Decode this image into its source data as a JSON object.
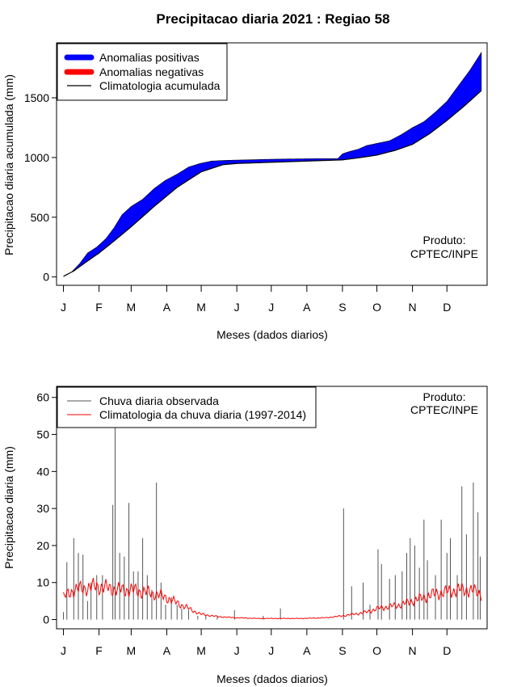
{
  "title": "Precipitacao diaria 2021 : Regiao 58",
  "producer": {
    "line1": "Produto:",
    "line2": "CPTEC/INPE"
  },
  "colors": {
    "positive": "#0000ff",
    "negative": "#ff0000",
    "observed": "#555555",
    "climatology": "#ff0000",
    "axis": "#000000"
  },
  "chart_data": [
    {
      "type": "area",
      "name": "accumulated",
      "xlabel": "Meses (dados diarios)",
      "ylabel": "Precipitacao diaria acumulada (mm)",
      "month_ticks": [
        "J",
        "F",
        "M",
        "A",
        "M",
        "J",
        "J",
        "A",
        "S",
        "O",
        "N",
        "D"
      ],
      "x_days": [
        1,
        32,
        60,
        91,
        121,
        152,
        182,
        213,
        244,
        274,
        305,
        335
      ],
      "xlim": [
        -5,
        370
      ],
      "ylim": [
        -70,
        1960
      ],
      "yticks": [
        0,
        500,
        1000,
        1500
      ],
      "legend": [
        "Anomalias positivas",
        "Anomalias negativas",
        "Climatologia acumulada"
      ],
      "legend_position": "top-left",
      "observed_cumulative": {
        "days": [
          1,
          8,
          15,
          22,
          30,
          38,
          45,
          52,
          60,
          70,
          80,
          90,
          100,
          110,
          120,
          130,
          140,
          150,
          160,
          180,
          200,
          220,
          240,
          244,
          250,
          258,
          265,
          275,
          285,
          295,
          305,
          315,
          325,
          335,
          345,
          355,
          365
        ],
        "values": [
          5,
          40,
          110,
          200,
          250,
          320,
          410,
          520,
          590,
          650,
          740,
          810,
          860,
          920,
          950,
          970,
          975,
          978,
          980,
          985,
          988,
          990,
          990,
          1030,
          1050,
          1070,
          1100,
          1120,
          1140,
          1190,
          1250,
          1300,
          1380,
          1470,
          1600,
          1730,
          1880
        ]
      },
      "climatology_cumulative": {
        "days": [
          1,
          10,
          20,
          32,
          45,
          60,
          80,
          100,
          121,
          140,
          152,
          182,
          213,
          244,
          260,
          274,
          290,
          305,
          320,
          335,
          350,
          365
        ],
        "values": [
          5,
          50,
          120,
          200,
          300,
          420,
          590,
          750,
          880,
          940,
          950,
          960,
          970,
          980,
          1000,
          1020,
          1060,
          1110,
          1200,
          1310,
          1430,
          1560
        ]
      }
    },
    {
      "type": "bar",
      "name": "daily",
      "xlabel": "Meses (dados diarios)",
      "ylabel": "Precipitacao diaria (mm)",
      "month_ticks": [
        "J",
        "F",
        "M",
        "A",
        "M",
        "J",
        "J",
        "A",
        "S",
        "O",
        "N",
        "D"
      ],
      "x_days": [
        1,
        32,
        60,
        91,
        121,
        152,
        182,
        213,
        244,
        274,
        305,
        335
      ],
      "xlim": [
        -5,
        370
      ],
      "ylim": [
        -2.5,
        63
      ],
      "yticks": [
        0,
        10,
        20,
        30,
        40,
        50,
        60
      ],
      "legend": [
        "Chuva diaria observada",
        "Climatologia da chuva diaria (1997-2014)"
      ],
      "legend_position": "top-left",
      "observed_peaks": {
        "days": [
          1,
          4,
          10,
          14,
          18,
          22,
          25,
          30,
          35,
          44,
          46,
          50,
          54,
          58,
          62,
          66,
          70,
          74,
          78,
          82,
          86,
          90,
          95,
          100,
          104,
          110,
          118,
          125,
          135,
          150,
          175,
          190,
          245,
          252,
          262,
          268,
          275,
          278,
          285,
          290,
          296,
          300,
          303,
          307,
          311,
          315,
          318,
          325,
          330,
          335,
          338,
          344,
          348,
          352,
          358,
          362,
          364
        ],
        "values": [
          2,
          15.5,
          22,
          18,
          17.5,
          5,
          10,
          12,
          12,
          31,
          52,
          18,
          17,
          31.5,
          13,
          13,
          22,
          12,
          8,
          37,
          10,
          4,
          6,
          4,
          3,
          2.5,
          1,
          1,
          1,
          2.5,
          1,
          3,
          30,
          9,
          10,
          4,
          19,
          15,
          11,
          12,
          13,
          18,
          22,
          20,
          14,
          27,
          16,
          12,
          27,
          18,
          22,
          12,
          36,
          23,
          37,
          29,
          17
        ]
      },
      "climatology": {
        "days": [
          1,
          10,
          20,
          30,
          40,
          50,
          60,
          70,
          80,
          90,
          100,
          110,
          120,
          135,
          150,
          170,
          190,
          210,
          230,
          244,
          255,
          265,
          275,
          285,
          295,
          305,
          315,
          325,
          335,
          345,
          355,
          365
        ],
        "values": [
          6,
          8,
          8.5,
          9,
          8.5,
          8,
          8,
          7.5,
          7,
          6,
          4.5,
          3,
          1.5,
          0.8,
          0.5,
          0.3,
          0.3,
          0.3,
          0.5,
          1,
          1.5,
          2,
          3,
          3.5,
          4,
          5,
          6,
          7,
          7.5,
          8,
          8,
          7
        ]
      }
    }
  ]
}
